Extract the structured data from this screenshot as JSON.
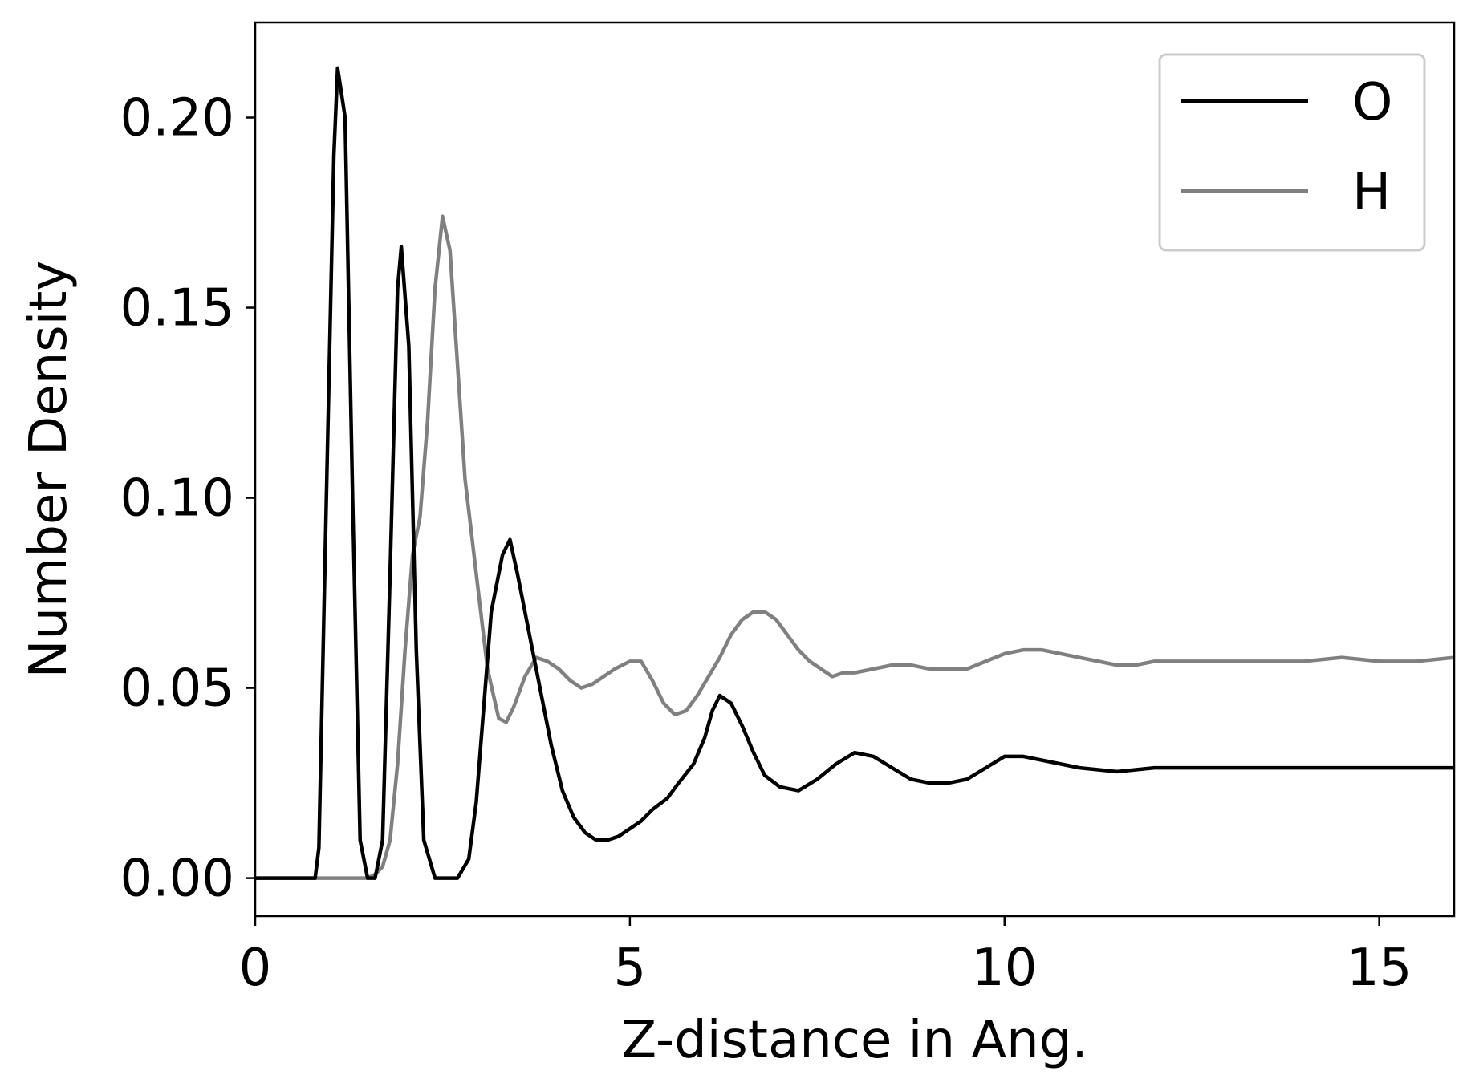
{
  "chart_data": {
    "type": "line",
    "title": "",
    "xlabel": "Z-distance in Ang.",
    "ylabel": "Number Density",
    "xlim": [
      0,
      16
    ],
    "ylim": [
      -0.01,
      0.225
    ],
    "x_ticks": [
      0,
      5,
      10,
      15
    ],
    "x_tick_labels": [
      "0",
      "5",
      "10",
      "15"
    ],
    "y_ticks": [
      0.0,
      0.05,
      0.1,
      0.15,
      0.2
    ],
    "y_tick_labels": [
      "0.00",
      "0.05",
      "0.10",
      "0.15",
      "0.20"
    ],
    "grid": false,
    "legend_position": "top-right",
    "series": [
      {
        "name": "O",
        "color": "#000000",
        "points": [
          [
            0.0,
            0.0
          ],
          [
            0.8,
            0.0
          ],
          [
            0.85,
            0.008
          ],
          [
            0.95,
            0.1
          ],
          [
            1.05,
            0.19
          ],
          [
            1.1,
            0.213
          ],
          [
            1.2,
            0.2
          ],
          [
            1.3,
            0.1
          ],
          [
            1.4,
            0.01
          ],
          [
            1.5,
            0.0
          ],
          [
            1.6,
            0.0
          ],
          [
            1.7,
            0.01
          ],
          [
            1.8,
            0.08
          ],
          [
            1.9,
            0.155
          ],
          [
            1.95,
            0.166
          ],
          [
            2.05,
            0.14
          ],
          [
            2.15,
            0.06
          ],
          [
            2.25,
            0.01
          ],
          [
            2.4,
            0.0
          ],
          [
            2.7,
            0.0
          ],
          [
            2.85,
            0.005
          ],
          [
            2.95,
            0.02
          ],
          [
            3.05,
            0.045
          ],
          [
            3.15,
            0.07
          ],
          [
            3.3,
            0.085
          ],
          [
            3.4,
            0.089
          ],
          [
            3.5,
            0.08
          ],
          [
            3.6,
            0.07
          ],
          [
            3.7,
            0.06
          ],
          [
            3.8,
            0.05
          ],
          [
            3.95,
            0.035
          ],
          [
            4.1,
            0.023
          ],
          [
            4.25,
            0.016
          ],
          [
            4.4,
            0.012
          ],
          [
            4.55,
            0.01
          ],
          [
            4.7,
            0.01
          ],
          [
            4.85,
            0.011
          ],
          [
            5.0,
            0.013
          ],
          [
            5.15,
            0.015
          ],
          [
            5.3,
            0.018
          ],
          [
            5.5,
            0.021
          ],
          [
            5.65,
            0.025
          ],
          [
            5.85,
            0.03
          ],
          [
            6.0,
            0.037
          ],
          [
            6.1,
            0.044
          ],
          [
            6.2,
            0.048
          ],
          [
            6.35,
            0.046
          ],
          [
            6.5,
            0.04
          ],
          [
            6.65,
            0.033
          ],
          [
            6.8,
            0.027
          ],
          [
            7.0,
            0.024
          ],
          [
            7.25,
            0.023
          ],
          [
            7.5,
            0.026
          ],
          [
            7.75,
            0.03
          ],
          [
            8.0,
            0.033
          ],
          [
            8.25,
            0.032
          ],
          [
            8.5,
            0.029
          ],
          [
            8.75,
            0.026
          ],
          [
            9.0,
            0.025
          ],
          [
            9.25,
            0.025
          ],
          [
            9.5,
            0.026
          ],
          [
            9.75,
            0.029
          ],
          [
            10.0,
            0.032
          ],
          [
            10.25,
            0.032
          ],
          [
            10.5,
            0.031
          ],
          [
            10.75,
            0.03
          ],
          [
            11.0,
            0.029
          ],
          [
            11.5,
            0.028
          ],
          [
            12.0,
            0.029
          ],
          [
            12.5,
            0.029
          ],
          [
            13.0,
            0.029
          ],
          [
            13.5,
            0.029
          ],
          [
            14.0,
            0.029
          ],
          [
            14.5,
            0.029
          ],
          [
            15.0,
            0.029
          ],
          [
            15.5,
            0.029
          ],
          [
            16.0,
            0.029
          ]
        ]
      },
      {
        "name": "H",
        "color": "#808080",
        "points": [
          [
            0.0,
            0.0
          ],
          [
            1.5,
            0.0
          ],
          [
            1.6,
            0.001
          ],
          [
            1.7,
            0.003
          ],
          [
            1.8,
            0.01
          ],
          [
            1.9,
            0.03
          ],
          [
            2.0,
            0.06
          ],
          [
            2.1,
            0.085
          ],
          [
            2.2,
            0.095
          ],
          [
            2.3,
            0.12
          ],
          [
            2.4,
            0.155
          ],
          [
            2.5,
            0.174
          ],
          [
            2.6,
            0.165
          ],
          [
            2.7,
            0.135
          ],
          [
            2.8,
            0.105
          ],
          [
            2.95,
            0.08
          ],
          [
            3.1,
            0.055
          ],
          [
            3.25,
            0.042
          ],
          [
            3.35,
            0.041
          ],
          [
            3.45,
            0.045
          ],
          [
            3.6,
            0.053
          ],
          [
            3.75,
            0.058
          ],
          [
            3.9,
            0.057
          ],
          [
            4.05,
            0.055
          ],
          [
            4.2,
            0.052
          ],
          [
            4.35,
            0.05
          ],
          [
            4.5,
            0.051
          ],
          [
            4.65,
            0.053
          ],
          [
            4.8,
            0.055
          ],
          [
            5.0,
            0.057
          ],
          [
            5.15,
            0.057
          ],
          [
            5.3,
            0.052
          ],
          [
            5.45,
            0.046
          ],
          [
            5.6,
            0.043
          ],
          [
            5.75,
            0.044
          ],
          [
            5.9,
            0.048
          ],
          [
            6.05,
            0.053
          ],
          [
            6.2,
            0.058
          ],
          [
            6.35,
            0.064
          ],
          [
            6.5,
            0.068
          ],
          [
            6.65,
            0.07
          ],
          [
            6.8,
            0.07
          ],
          [
            6.95,
            0.068
          ],
          [
            7.1,
            0.064
          ],
          [
            7.25,
            0.06
          ],
          [
            7.4,
            0.057
          ],
          [
            7.55,
            0.055
          ],
          [
            7.7,
            0.053
          ],
          [
            7.85,
            0.054
          ],
          [
            8.0,
            0.054
          ],
          [
            8.25,
            0.055
          ],
          [
            8.5,
            0.056
          ],
          [
            8.75,
            0.056
          ],
          [
            9.0,
            0.055
          ],
          [
            9.25,
            0.055
          ],
          [
            9.5,
            0.055
          ],
          [
            9.75,
            0.057
          ],
          [
            10.0,
            0.059
          ],
          [
            10.25,
            0.06
          ],
          [
            10.5,
            0.06
          ],
          [
            10.75,
            0.059
          ],
          [
            11.0,
            0.058
          ],
          [
            11.25,
            0.057
          ],
          [
            11.5,
            0.056
          ],
          [
            11.75,
            0.056
          ],
          [
            12.0,
            0.057
          ],
          [
            12.5,
            0.057
          ],
          [
            13.0,
            0.057
          ],
          [
            13.5,
            0.057
          ],
          [
            14.0,
            0.057
          ],
          [
            14.5,
            0.058
          ],
          [
            15.0,
            0.057
          ],
          [
            15.5,
            0.057
          ],
          [
            16.0,
            0.058
          ]
        ]
      }
    ]
  }
}
